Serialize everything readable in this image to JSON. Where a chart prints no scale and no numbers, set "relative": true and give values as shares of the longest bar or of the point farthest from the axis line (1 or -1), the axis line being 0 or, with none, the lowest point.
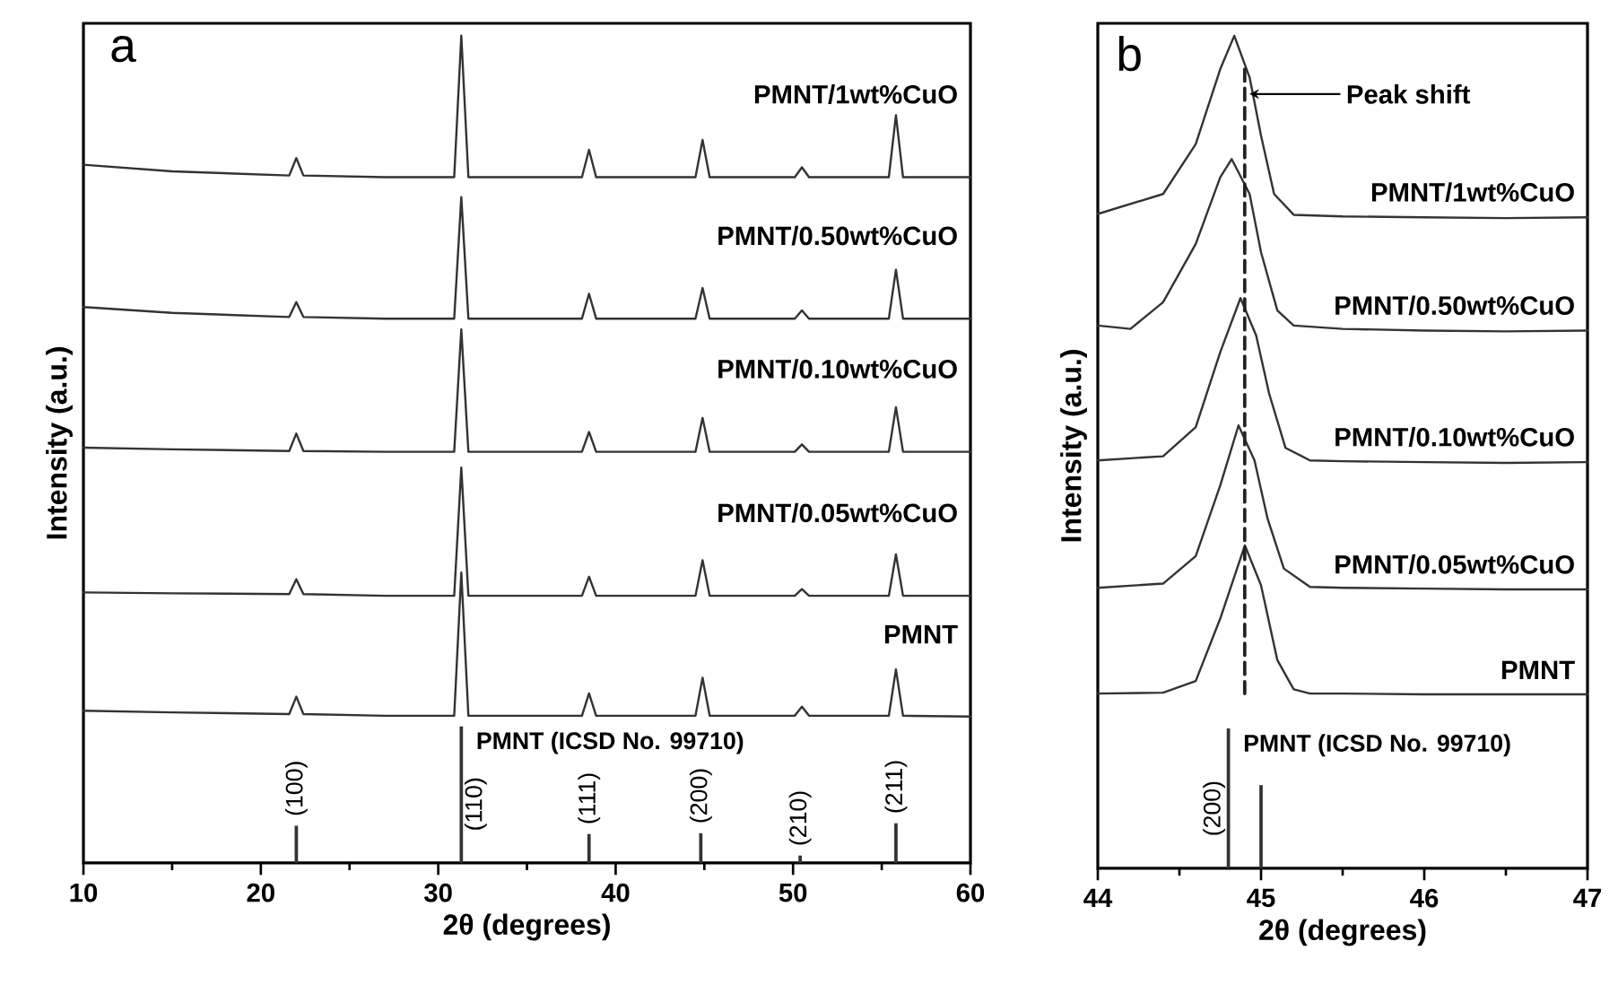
{
  "chart_data": [
    {
      "type": "line",
      "relative": true,
      "xlabel": "2θ (degrees)",
      "ylabel": "Intensity (a.u.)",
      "xlim": [
        10,
        60
      ],
      "xticks": [
        10,
        20,
        30,
        40,
        50,
        60
      ],
      "x": [
        10,
        15,
        21.6,
        22.0,
        22.4,
        27,
        30.9,
        31.3,
        31.7,
        35,
        38.1,
        38.5,
        38.9,
        44.5,
        44.9,
        45.3,
        50.1,
        50.5,
        50.9,
        55.4,
        55.8,
        56.2,
        60
      ],
      "series": [
        {
          "name": "PMNT/1wt%CuO",
          "color": "#333333",
          "values": [
            0.844,
            0.836,
            0.831,
            0.852,
            0.831,
            0.829,
            0.829,
            1.0,
            0.829,
            0.829,
            0.829,
            0.862,
            0.829,
            0.829,
            0.874,
            0.829,
            0.829,
            0.841,
            0.829,
            0.829,
            0.904,
            0.829,
            0.829
          ]
        },
        {
          "name": "PMNT/0.50wt%CuO",
          "color": "#333333",
          "values": [
            0.672,
            0.665,
            0.66,
            0.678,
            0.66,
            0.658,
            0.658,
            0.805,
            0.658,
            0.658,
            0.658,
            0.688,
            0.658,
            0.658,
            0.695,
            0.658,
            0.658,
            0.668,
            0.658,
            0.658,
            0.717,
            0.658,
            0.658
          ]
        },
        {
          "name": "PMNT/0.10wt%CuO",
          "color": "#333333",
          "values": [
            0.502,
            0.5,
            0.498,
            0.519,
            0.498,
            0.497,
            0.497,
            0.645,
            0.497,
            0.497,
            0.497,
            0.521,
            0.497,
            0.497,
            0.538,
            0.497,
            0.497,
            0.506,
            0.497,
            0.497,
            0.551,
            0.497,
            0.497
          ]
        },
        {
          "name": "PMNT/0.05wt%CuO",
          "color": "#333333",
          "values": [
            0.327,
            0.326,
            0.325,
            0.343,
            0.325,
            0.323,
            0.323,
            0.478,
            0.323,
            0.323,
            0.323,
            0.346,
            0.323,
            0.323,
            0.366,
            0.323,
            0.323,
            0.331,
            0.323,
            0.323,
            0.373,
            0.323,
            0.323
          ]
        },
        {
          "name": "PMNT",
          "color": "#333333",
          "values": [
            0.184,
            0.182,
            0.18,
            0.201,
            0.18,
            0.178,
            0.178,
            0.351,
            0.178,
            0.178,
            0.178,
            0.205,
            0.178,
            0.178,
            0.224,
            0.178,
            0.178,
            0.189,
            0.178,
            0.178,
            0.234,
            0.178,
            0.177
          ]
        },
        {
          "name": "PMNT (ICSD No. 99710)",
          "type": "bar",
          "color": "#333333",
          "x": [
            22.0,
            31.3,
            38.5,
            44.8,
            50.4,
            55.8
          ],
          "values": [
            0.045,
            0.165,
            0.035,
            0.036,
            0.009,
            0.048
          ]
        }
      ],
      "annotations": [
        "a",
        {
          "text": "(100)",
          "x": 22.0,
          "y": 0.045
        },
        {
          "text": "(110)",
          "x": 31.3,
          "y": 0.165
        },
        {
          "text": "(111)",
          "x": 38.5,
          "y": 0.035
        },
        {
          "text": "(200)",
          "x": 44.8,
          "y": 0.036
        },
        {
          "text": "(210)",
          "x": 50.4,
          "y": 0.009
        },
        {
          "text": "(211)",
          "x": 55.8,
          "y": 0.048
        }
      ]
    },
    {
      "type": "line",
      "relative": true,
      "xlabel": "2θ (degrees)",
      "ylabel": "Intensity (a.u.)",
      "xlim": [
        44,
        47
      ],
      "xticks": [
        44,
        45,
        46,
        47
      ],
      "series": [
        {
          "name": "PMNT/1wt%CuO",
          "color": "#333333",
          "x": [
            44.0,
            44.4,
            44.6,
            44.75,
            44.836,
            44.93,
            45.0,
            45.08,
            45.2,
            45.5,
            46.0,
            46.5,
            47.0
          ],
          "values": [
            0.786,
            0.81,
            0.87,
            0.96,
            1.0,
            0.95,
            0.88,
            0.81,
            0.785,
            0.783,
            0.782,
            0.781,
            0.782
          ]
        },
        {
          "name": "PMNT/0.50wt%CuO",
          "color": "#333333",
          "x": [
            44.0,
            44.2,
            44.4,
            44.6,
            44.75,
            44.82,
            44.93,
            45.0,
            45.1,
            45.2,
            45.5,
            46.0,
            46.5,
            47.0
          ],
          "values": [
            0.652,
            0.648,
            0.68,
            0.75,
            0.83,
            0.852,
            0.81,
            0.74,
            0.67,
            0.652,
            0.648,
            0.646,
            0.645,
            0.646
          ]
        },
        {
          "name": "PMNT/0.10wt%CuO",
          "color": "#333333",
          "x": [
            44.0,
            44.4,
            44.6,
            44.75,
            44.874,
            44.97,
            45.05,
            45.15,
            45.3,
            45.5,
            46.0,
            46.5,
            47.0
          ],
          "values": [
            0.49,
            0.495,
            0.53,
            0.62,
            0.685,
            0.64,
            0.57,
            0.505,
            0.49,
            0.489,
            0.488,
            0.487,
            0.488
          ]
        },
        {
          "name": "PMNT/0.05wt%CuO",
          "color": "#333333",
          "x": [
            44.0,
            44.4,
            44.6,
            44.75,
            44.862,
            44.96,
            45.04,
            45.14,
            45.3,
            45.5,
            46.0,
            46.5,
            47.0
          ],
          "values": [
            0.337,
            0.342,
            0.375,
            0.46,
            0.532,
            0.49,
            0.42,
            0.36,
            0.338,
            0.337,
            0.336,
            0.335,
            0.335
          ]
        },
        {
          "name": "PMNT",
          "color": "#333333",
          "x": [
            44.0,
            44.4,
            44.6,
            44.75,
            44.901,
            45.0,
            45.1,
            45.2,
            45.3,
            45.5,
            46.0,
            46.5,
            47.0
          ],
          "values": [
            0.21,
            0.211,
            0.225,
            0.3,
            0.388,
            0.34,
            0.25,
            0.215,
            0.21,
            0.21,
            0.209,
            0.209,
            0.209
          ]
        },
        {
          "name": "PMNT (ICSD No. 99710)",
          "type": "bar",
          "color": "#333333",
          "x": [
            44.8,
            45.0
          ],
          "values": [
            0.168,
            0.1
          ]
        },
        {
          "type": "line",
          "line_style": "dashed",
          "color": "#222222",
          "x": [
            44.9,
            44.9
          ],
          "values": [
            0.21,
            0.96
          ]
        }
      ],
      "annotations": [
        "b",
        {
          "text": "(200)",
          "x": 44.8,
          "y": 0.168
        },
        {
          "text": "Peak shift",
          "x": 44.9,
          "y": 0.93
        }
      ]
    }
  ]
}
